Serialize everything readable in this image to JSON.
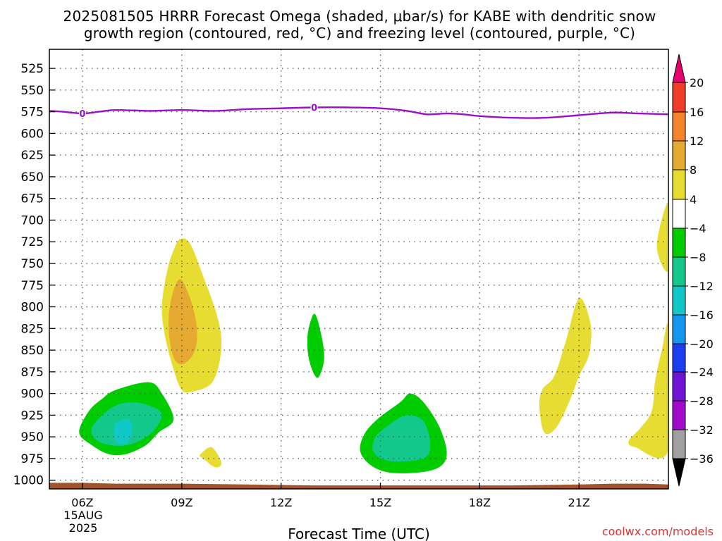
{
  "chart_data": {
    "type": "heatmap",
    "title_line1": "2025081505 HRRR Forecast Omega (shaded, μbar/s) for KABE with dendritic snow",
    "title_line2": "growth region (contoured, red, °C) and freezing level (contoured, purple, °C)",
    "xlabel": "Forecast Time (UTC)",
    "credit": "coolwx.com/models",
    "x_range_hours": [
      5,
      23.7
    ],
    "x_ticks": [
      {
        "hour": 6,
        "label": "06Z"
      },
      {
        "hour": 9,
        "label": "09Z"
      },
      {
        "hour": 12,
        "label": "12Z"
      },
      {
        "hour": 15,
        "label": "15Z"
      },
      {
        "hour": 18,
        "label": "18Z"
      },
      {
        "hour": 21,
        "label": "21Z"
      }
    ],
    "date_label": [
      "15AUG",
      "2025"
    ],
    "y_range_mb": [
      1010,
      503
    ],
    "y_ticks": [
      525,
      550,
      575,
      600,
      625,
      650,
      675,
      700,
      725,
      750,
      775,
      800,
      825,
      850,
      875,
      900,
      925,
      950,
      975,
      1000
    ],
    "y_labels": [
      "525",
      "550",
      "575",
      "600",
      "625",
      "650",
      "675",
      "700",
      "725",
      "750",
      "775",
      "800",
      "825",
      "850",
      "875",
      "900",
      "925",
      "950",
      "975",
      "1000"
    ],
    "grid": true,
    "colorbar": {
      "labels": [
        "20",
        "16",
        "12",
        "8",
        "4",
        "−4",
        "−8",
        "−12",
        "−16",
        "−20",
        "−24",
        "−28",
        "−32",
        "−36"
      ],
      "values": [
        20,
        16,
        12,
        8,
        4,
        -4,
        -8,
        -12,
        -16,
        -20,
        -24,
        -28,
        -32,
        -36
      ],
      "colors": [
        "#e8006e",
        "#f03c28",
        "#f5822d",
        "#e6aa32",
        "#e6dc32",
        "#ffffff",
        "#00cc00",
        "#14c88c",
        "#10c8c8",
        "#1496f0",
        "#1e3cf0",
        "#6e14d2",
        "#a00ac8",
        "#a0a0a0",
        "#000000"
      ]
    },
    "freezing_level": {
      "label": "0",
      "color": "#9a10c8",
      "points": [
        [
          5,
          574
        ],
        [
          5.4,
          575
        ],
        [
          6,
          577
        ],
        [
          6.5,
          575
        ],
        [
          7,
          573
        ],
        [
          8,
          574
        ],
        [
          9,
          573
        ],
        [
          10,
          574
        ],
        [
          11,
          572
        ],
        [
          12,
          571
        ],
        [
          13,
          570
        ],
        [
          14,
          570
        ],
        [
          15,
          571
        ],
        [
          15.8,
          574
        ],
        [
          16.4,
          578
        ],
        [
          17,
          577
        ],
        [
          17.5,
          578
        ],
        [
          18,
          580
        ],
        [
          19,
          582
        ],
        [
          20,
          582
        ],
        [
          21,
          579
        ],
        [
          22,
          576
        ],
        [
          22.8,
          577
        ],
        [
          23.7,
          578
        ]
      ]
    },
    "shaded_regions": [
      {
        "value": 6,
        "color": "#e6dc32",
        "points": [
          [
            8.95,
            722
          ],
          [
            9.25,
            727
          ],
          [
            9.65,
            765
          ],
          [
            10.05,
            808
          ],
          [
            10.2,
            840
          ],
          [
            10.1,
            870
          ],
          [
            9.85,
            890
          ],
          [
            9.3,
            898
          ],
          [
            9.0,
            896
          ],
          [
            8.75,
            872
          ],
          [
            8.5,
            835
          ],
          [
            8.4,
            800
          ],
          [
            8.55,
            760
          ],
          [
            8.75,
            735
          ]
        ]
      },
      {
        "value": 10,
        "color": "#e6aa32",
        "points": [
          [
            8.95,
            768
          ],
          [
            9.25,
            790
          ],
          [
            9.45,
            822
          ],
          [
            9.4,
            850
          ],
          [
            9.05,
            866
          ],
          [
            8.75,
            858
          ],
          [
            8.6,
            822
          ],
          [
            8.7,
            788
          ]
        ]
      },
      {
        "value": 6,
        "color": "#e6dc32",
        "points": [
          [
            9.55,
            971
          ],
          [
            9.9,
            962
          ],
          [
            10.2,
            980
          ],
          [
            10.0,
            985
          ],
          [
            9.65,
            975
          ]
        ]
      },
      {
        "value": -6,
        "color": "#00cc00",
        "points": [
          [
            7.0,
            896
          ],
          [
            8.0,
            887
          ],
          [
            8.4,
            900
          ],
          [
            8.75,
            930
          ],
          [
            8.3,
            945
          ],
          [
            7.9,
            960
          ],
          [
            7.3,
            970
          ],
          [
            6.8,
            970
          ],
          [
            6.3,
            960
          ],
          [
            5.9,
            945
          ],
          [
            6.2,
            920
          ],
          [
            6.6,
            906
          ]
        ]
      },
      {
        "value": -10,
        "color": "#14c88c",
        "points": [
          [
            6.3,
            938
          ],
          [
            6.9,
            916
          ],
          [
            7.5,
            910
          ],
          [
            8.1,
            915
          ],
          [
            8.4,
            925
          ],
          [
            8.1,
            945
          ],
          [
            7.5,
            958
          ],
          [
            6.9,
            960
          ],
          [
            6.4,
            953
          ]
        ]
      },
      {
        "value": -14,
        "color": "#10c8c8",
        "points": [
          [
            7.0,
            935
          ],
          [
            7.4,
            930
          ],
          [
            7.5,
            945
          ],
          [
            7.3,
            958
          ],
          [
            7.0,
            955
          ]
        ]
      },
      {
        "value": -6,
        "color": "#00cc00",
        "points": [
          [
            13.0,
            808
          ],
          [
            13.2,
            830
          ],
          [
            13.3,
            860
          ],
          [
            13.1,
            882
          ],
          [
            12.85,
            862
          ],
          [
            12.8,
            833
          ]
        ]
      },
      {
        "value": -6,
        "color": "#00cc00",
        "points": [
          [
            15.6,
            910
          ],
          [
            15.9,
            900
          ],
          [
            16.3,
            910
          ],
          [
            16.8,
            940
          ],
          [
            17.0,
            972
          ],
          [
            16.6,
            988
          ],
          [
            15.5,
            992
          ],
          [
            14.8,
            985
          ],
          [
            14.4,
            968
          ],
          [
            14.5,
            948
          ],
          [
            14.9,
            930
          ]
        ]
      },
      {
        "value": -10,
        "color": "#14c88c",
        "points": [
          [
            15.3,
            935
          ],
          [
            15.8,
            925
          ],
          [
            16.3,
            932
          ],
          [
            16.5,
            958
          ],
          [
            16.3,
            975
          ],
          [
            15.3,
            978
          ],
          [
            14.8,
            968
          ],
          [
            14.85,
            950
          ]
        ]
      },
      {
        "value": 6,
        "color": "#e6dc32",
        "points": [
          [
            21.0,
            790
          ],
          [
            21.35,
            820
          ],
          [
            21.3,
            855
          ],
          [
            21.0,
            880
          ],
          [
            20.7,
            910
          ],
          [
            20.3,
            940
          ],
          [
            19.95,
            945
          ],
          [
            19.8,
            915
          ],
          [
            19.9,
            895
          ],
          [
            20.25,
            880
          ],
          [
            20.6,
            840
          ]
        ]
      },
      {
        "value": 6,
        "color": "#e6dc32",
        "points": [
          [
            23.7,
            825
          ],
          [
            23.5,
            850
          ],
          [
            23.3,
            885
          ],
          [
            23.2,
            920
          ],
          [
            22.85,
            940
          ],
          [
            22.5,
            955
          ],
          [
            22.7,
            962
          ],
          [
            23.7,
            965
          ]
        ]
      },
      {
        "value": 6,
        "color": "#e6dc32",
        "points": [
          [
            23.7,
            680
          ],
          [
            23.35,
            730
          ],
          [
            23.7,
            758
          ]
        ]
      }
    ],
    "surface_band": {
      "color": "#a0522d",
      "points": [
        [
          5,
          1003
        ],
        [
          6,
          1003
        ],
        [
          7,
          1004
        ],
        [
          9,
          1004
        ],
        [
          11,
          1005
        ],
        [
          13,
          1006
        ],
        [
          15,
          1006
        ],
        [
          17,
          1006
        ],
        [
          19,
          1006
        ],
        [
          21,
          1005
        ],
        [
          22,
          1004
        ],
        [
          23,
          1004
        ],
        [
          23.7,
          1005
        ]
      ]
    }
  }
}
